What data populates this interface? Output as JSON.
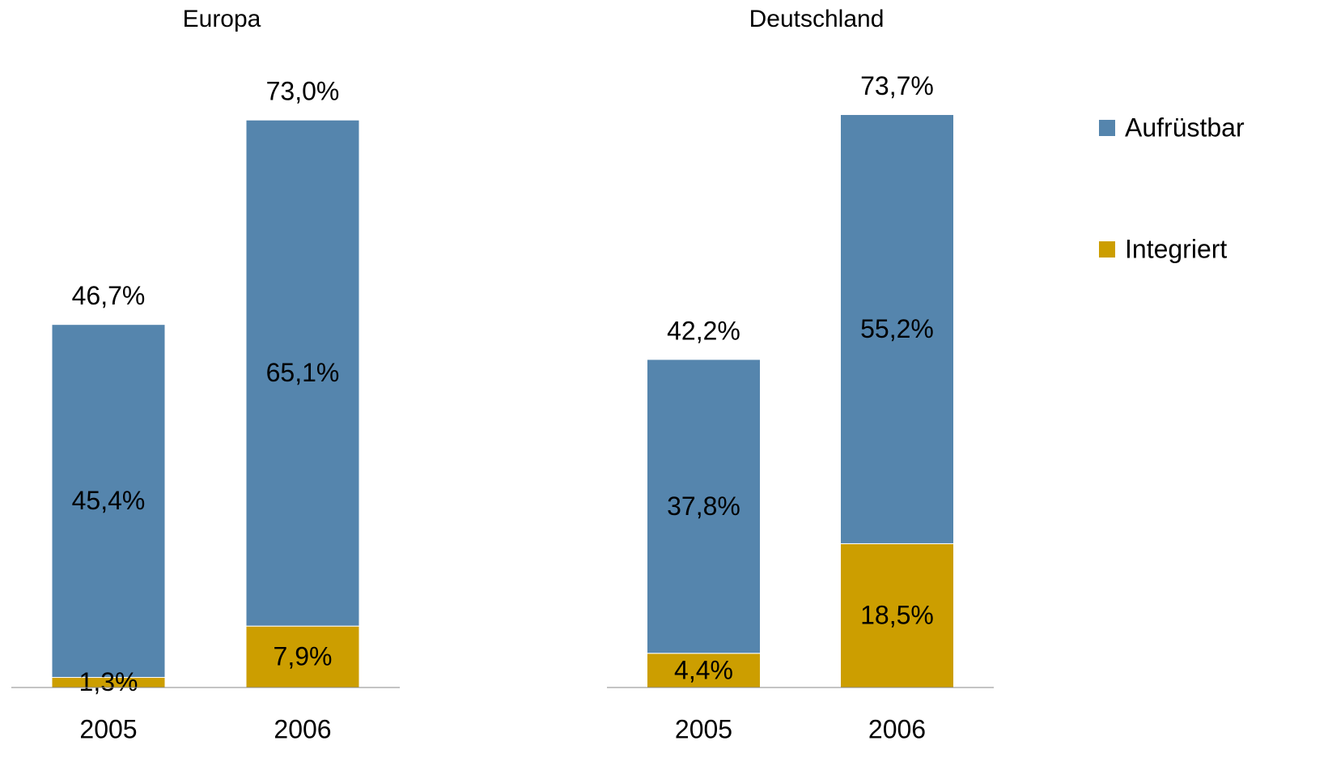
{
  "chart_data": [
    {
      "type": "bar",
      "stacked": true,
      "title": "Europa",
      "categories": [
        "2005",
        "2006"
      ],
      "series": [
        {
          "name": "Integriert",
          "color": "#cc9e00",
          "values": [
            1.3,
            7.9
          ],
          "value_labels": [
            "1,3%",
            "7,9%"
          ]
        },
        {
          "name": "Aufrüstbar",
          "color": "#5585ad",
          "values": [
            45.4,
            65.1
          ],
          "value_labels": [
            "45,4%",
            "65,1%"
          ]
        }
      ],
      "totals": [
        46.7,
        73.0
      ],
      "total_labels": [
        "46,7%",
        "73,0%"
      ],
      "ylim": [
        0,
        80
      ],
      "legend": "right"
    },
    {
      "type": "bar",
      "stacked": true,
      "title": "Deutschland",
      "categories": [
        "2005",
        "2006"
      ],
      "series": [
        {
          "name": "Integriert",
          "color": "#cc9e00",
          "values": [
            4.4,
            18.5
          ],
          "value_labels": [
            "4,4%",
            "18,5%"
          ]
        },
        {
          "name": "Aufrüstbar",
          "color": "#5585ad",
          "values": [
            37.8,
            55.2
          ],
          "value_labels": [
            "37,8%",
            "55,2%"
          ]
        }
      ],
      "totals": [
        42.2,
        73.7
      ],
      "total_labels": [
        "42,2%",
        "73,7%"
      ],
      "ylim": [
        0,
        80
      ]
    }
  ]
}
